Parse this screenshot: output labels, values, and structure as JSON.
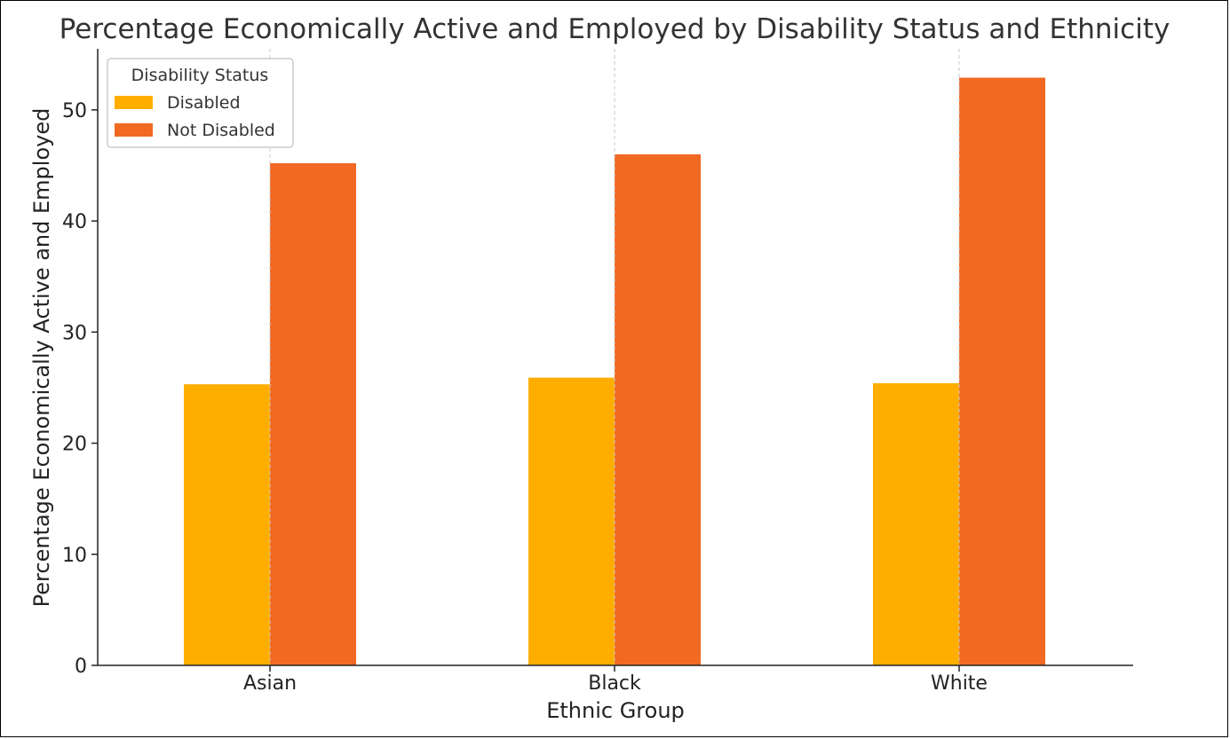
{
  "chart_data": {
    "type": "bar",
    "title": "Percentage Economically Active and Employed by Disability Status and Ethnicity",
    "xlabel": "Ethnic Group",
    "ylabel": "Percentage Economically Active and Employed",
    "categories": [
      "Asian",
      "Black",
      "White"
    ],
    "series": [
      {
        "name": "Disabled",
        "values": [
          25.3,
          25.9,
          25.4
        ],
        "color": "#FFAE00"
      },
      {
        "name": "Not Disabled",
        "values": [
          45.2,
          46.0,
          52.9
        ],
        "color": "#F26922"
      }
    ],
    "ylim": [
      0,
      55.5
    ],
    "yticks": [
      0,
      10,
      20,
      30,
      40,
      50
    ],
    "grid": "vertical-dashed",
    "legend": {
      "title": "Disability Status",
      "placement": "top-left"
    }
  }
}
